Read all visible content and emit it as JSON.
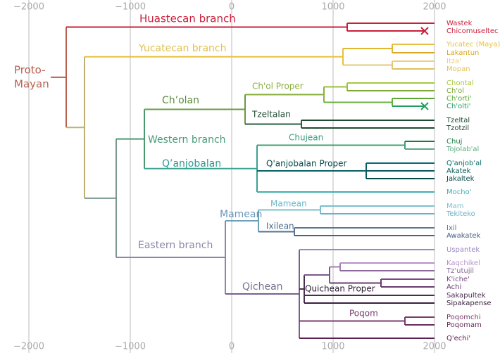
{
  "axis": {
    "ticks": [
      {
        "value": -2000,
        "label": "−2000"
      },
      {
        "value": -1000,
        "label": "−1000"
      },
      0,
      1000,
      2000
    ]
  },
  "root_label": [
    "Proto-",
    "Mayan"
  ],
  "root_color": "#b86050",
  "branches": [
    {
      "name": "Huastecan branch",
      "color": "#c8203a"
    },
    {
      "name": "Yucatecan branch",
      "color": "#e0c050"
    },
    {
      "name": "Ch’olan",
      "color": "#5a8a3a"
    },
    {
      "name": "Ch'ol Proper",
      "color": "#8ab040"
    },
    {
      "name": "Tzeltalan",
      "color": "#1e4a30"
    },
    {
      "name": "Western branch",
      "color": "#4a9a78"
    },
    {
      "name": "Q’anjobalan",
      "color": "#2a9a90"
    },
    {
      "name": "Chujean",
      "color": "#3a9a78"
    },
    {
      "name": "Q'anjobalan Proper",
      "color": "#0a4a4a"
    },
    {
      "name": "Mamean",
      "color": "#6a98b8"
    },
    {
      "name": "Mamean",
      "color": "#6ab8c8"
    },
    {
      "name": "Ixilean",
      "color": "#4a6a88"
    },
    {
      "name": "Eastern branch",
      "color": "#8a88a8"
    },
    {
      "name": "Qichean",
      "color": "#7a7090"
    },
    {
      "name": "Quichean Proper",
      "color": "#2a1a30"
    },
    {
      "name": "Poqom",
      "color": "#7a3a6a"
    }
  ],
  "leaves": [
    {
      "name": "Wastek",
      "color": "#c8203a",
      "extinct": false
    },
    {
      "name": "Chicomuseltec",
      "color": "#c8203a",
      "extinct": true
    },
    {
      "name": "Yucatec (Maya)",
      "color": "#e8c040",
      "extinct": false
    },
    {
      "name": "Lakantun",
      "color": "#d8a820",
      "extinct": false
    },
    {
      "name": "Itza'",
      "color": "#e8d080",
      "extinct": false
    },
    {
      "name": "Mopan",
      "color": "#e0c060",
      "extinct": false
    },
    {
      "name": "Chontal",
      "color": "#a8c840",
      "extinct": false
    },
    {
      "name": "Ch'ol",
      "color": "#7aa830",
      "extinct": false
    },
    {
      "name": "Ch'orti'",
      "color": "#5aa830",
      "extinct": false
    },
    {
      "name": "Ch'olti'",
      "color": "#20a060",
      "extinct": true
    },
    {
      "name": "Tzeltal",
      "color": "#1e4a30",
      "extinct": false
    },
    {
      "name": "Tzotzil",
      "color": "#1e4a30",
      "extinct": false
    },
    {
      "name": "Chuj",
      "color": "#1a7a40",
      "extinct": false
    },
    {
      "name": "Tojolab'al",
      "color": "#5aaa80",
      "extinct": false
    },
    {
      "name": "Q'anjob'al",
      "color": "#0a6a6a",
      "extinct": false
    },
    {
      "name": "Akatek",
      "color": "#085a5a",
      "extinct": false
    },
    {
      "name": "Jakaltek",
      "color": "#064a4a",
      "extinct": false
    },
    {
      "name": "Mocho'",
      "color": "#40b0b0",
      "extinct": false
    },
    {
      "name": "Mam",
      "color": "#7ac0d0",
      "extinct": false
    },
    {
      "name": "Tekiteko",
      "color": "#6ab0c8",
      "extinct": false
    },
    {
      "name": "Ixil",
      "color": "#5a7890",
      "extinct": false
    },
    {
      "name": "Awakatek",
      "color": "#4a6080",
      "extinct": false
    },
    {
      "name": "Uspantek",
      "color": "#9a88c0",
      "extinct": false
    },
    {
      "name": "Kaqchikel",
      "color": "#b890c8",
      "extinct": false
    },
    {
      "name": "Tz'utujil",
      "color": "#8a6a9a",
      "extinct": false
    },
    {
      "name": "K'iche'",
      "color": "#7a4a80",
      "extinct": false
    },
    {
      "name": "Achi",
      "color": "#6a3a70",
      "extinct": false
    },
    {
      "name": "Sakapultek",
      "color": "#4a2a50",
      "extinct": false
    },
    {
      "name": "Sipakapense",
      "color": "#3a2040",
      "extinct": false
    },
    {
      "name": "Poqomchi",
      "color": "#7a3a6a",
      "extinct": false
    },
    {
      "name": "Poqomam",
      "color": "#6a2a5a",
      "extinct": false
    },
    {
      "name": "Q'echi'",
      "color": "#5a2050",
      "extinct": false
    }
  ]
}
